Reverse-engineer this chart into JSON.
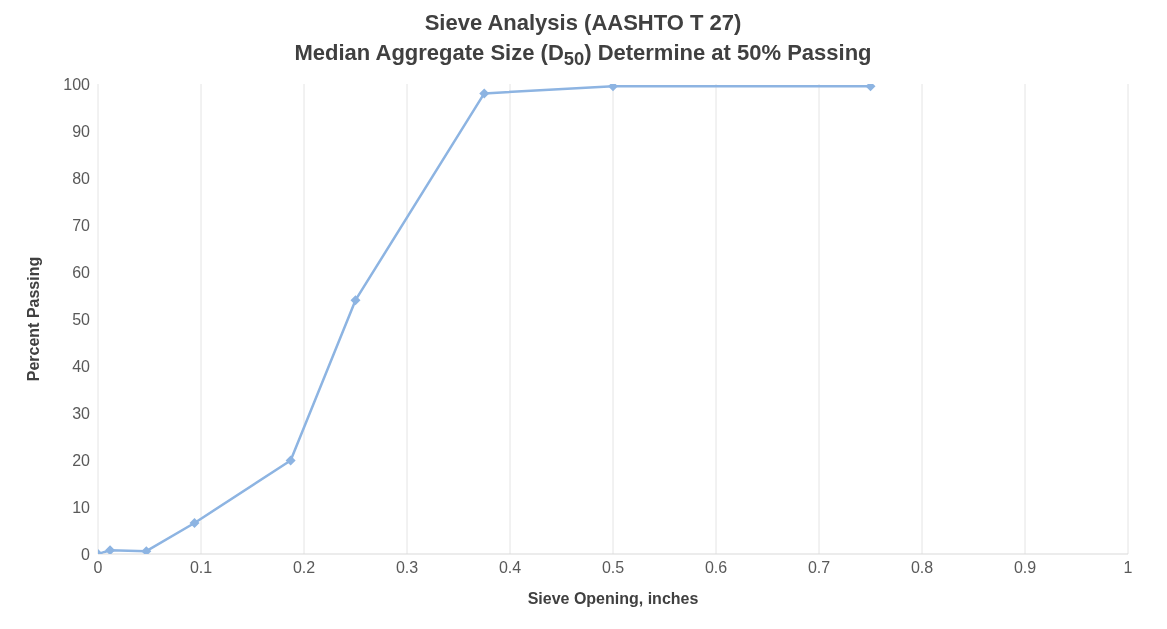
{
  "chart_data": {
    "type": "line",
    "title": "Sieve Analysis (AASHTO T 27)",
    "subtitle": "Median Aggregate Size (D$_{50}$) Determine at 50% Passing",
    "xlabel": "Sieve Opening, inches",
    "ylabel": "Percent Passing",
    "x": [
      0,
      0.0117,
      0.0469,
      0.0937,
      0.187,
      0.25,
      0.375,
      0.5,
      0.75
    ],
    "series": [
      {
        "color": "#8db4e2",
        "values": [
          0,
          0.8,
          0.6,
          6.6,
          19.9,
          54,
          98,
          99.5,
          99.5
        ]
      }
    ],
    "xlim": [
      0,
      1
    ],
    "xticks": [
      0,
      0.1,
      0.2,
      0.3,
      0.4,
      0.5,
      0.6,
      0.7,
      0.8,
      0.9,
      1
    ],
    "ylim": [
      0,
      100
    ],
    "yticks": [
      0,
      10,
      20,
      30,
      40,
      50,
      60,
      70,
      80,
      90,
      100
    ],
    "grid": "x",
    "legend": false,
    "marker": "diamond",
    "line_style": "solid"
  }
}
